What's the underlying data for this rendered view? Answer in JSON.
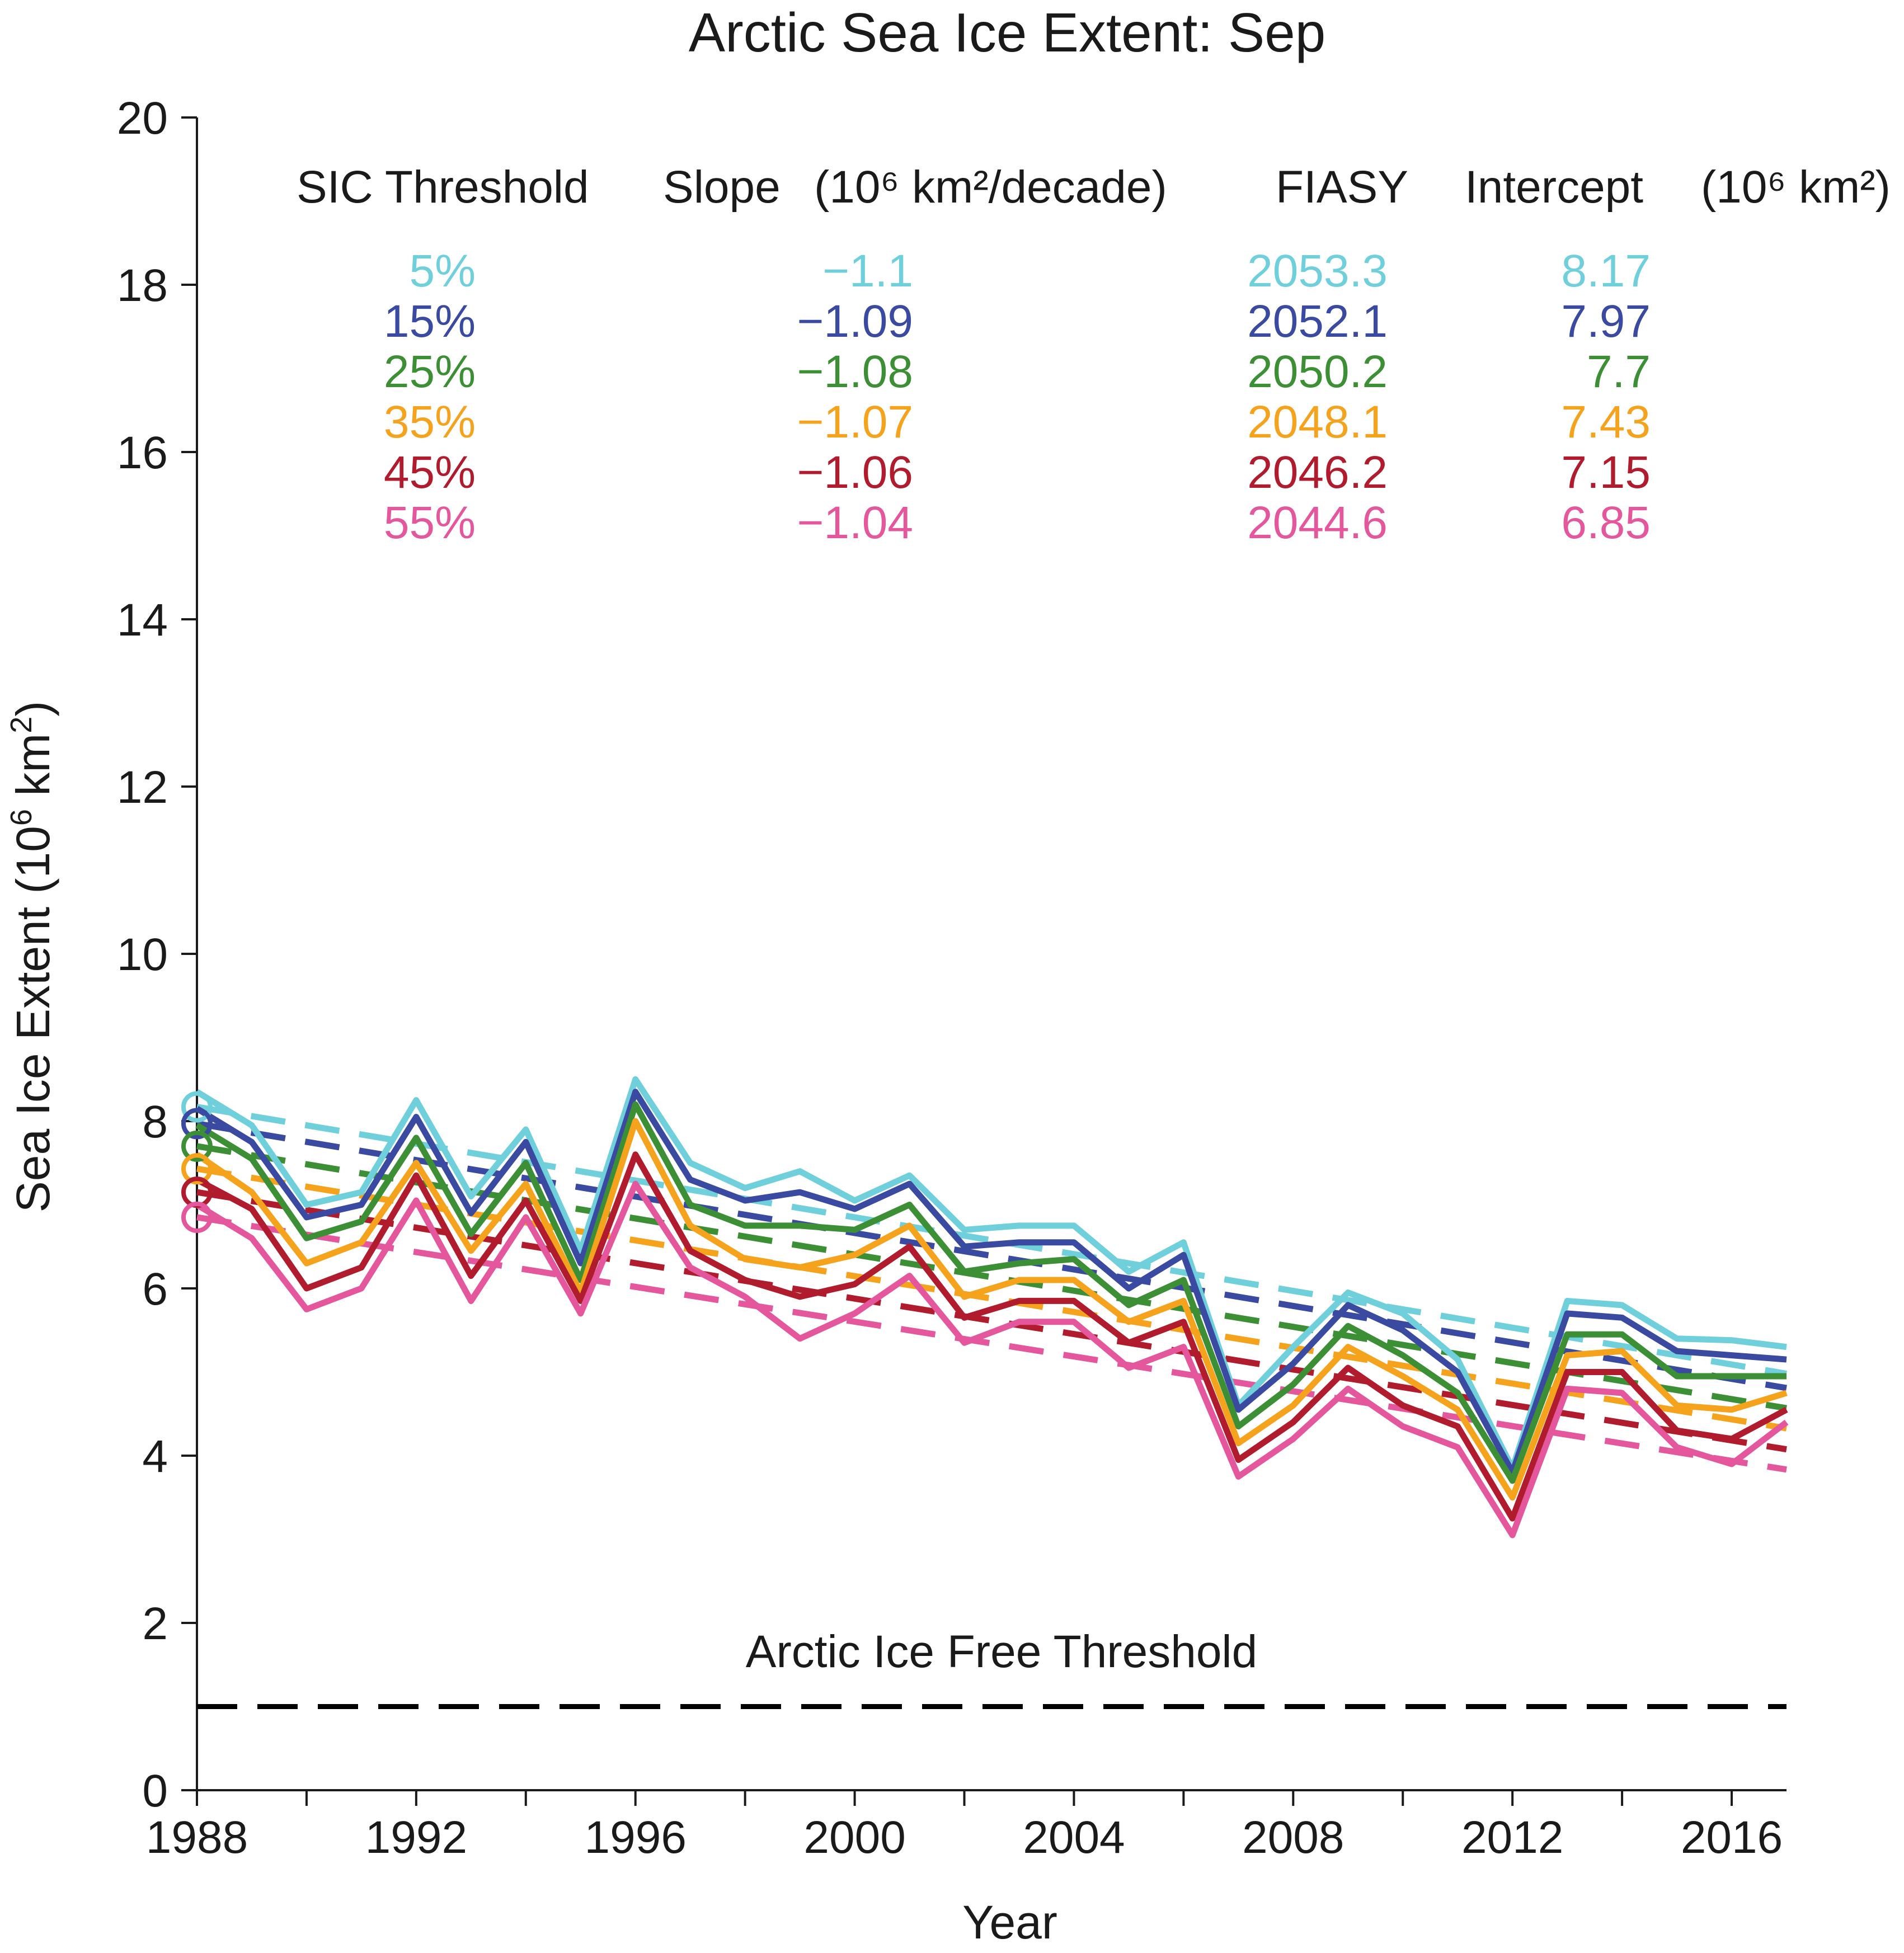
{
  "chart_data": {
    "type": "line",
    "title": "Arctic Sea Ice Extent: Sep",
    "xlabel": "Year",
    "ylabel": "Sea Ice Extent (10^6 km^2)",
    "xlim": [
      1988,
      2017
    ],
    "ylim": [
      0,
      20
    ],
    "x_ticks": [
      1988,
      1990,
      1992,
      1994,
      1996,
      1998,
      2000,
      2002,
      2004,
      2006,
      2008,
      2010,
      2012,
      2014,
      2016
    ],
    "x_tick_labels": [
      "1988",
      "1992",
      "1996",
      "2000",
      "2004",
      "2008",
      "2012",
      "2016"
    ],
    "y_ticks": [
      0,
      2,
      4,
      6,
      8,
      10,
      12,
      14,
      16,
      18,
      20
    ],
    "x": [
      1988,
      1989,
      1990,
      1991,
      1992,
      1993,
      1994,
      1995,
      1996,
      1997,
      1998,
      1999,
      2000,
      2001,
      2002,
      2003,
      2004,
      2005,
      2006,
      2007,
      2008,
      2009,
      2010,
      2011,
      2012,
      2013,
      2014,
      2015,
      2016,
      2017
    ],
    "table_headers": {
      "threshold": "SIC Threshold",
      "slope": "Slope",
      "slope_unit": "(10⁶ km²/decade)",
      "fiasy": "FIASY",
      "intercept": "Intercept",
      "intercept_unit": "(10⁶ km²)"
    },
    "series": [
      {
        "name": "5%",
        "color": "#6fd0dc",
        "slope": "−1.1",
        "fiasy": "2053.3",
        "intercept": "8.17",
        "values": [
          8.35,
          7.95,
          7.0,
          7.15,
          8.25,
          7.1,
          7.9,
          6.45,
          8.5,
          7.5,
          7.2,
          7.4,
          7.05,
          7.35,
          6.7,
          6.75,
          6.75,
          6.2,
          6.55,
          4.6,
          5.3,
          5.95,
          5.7,
          5.15,
          3.85,
          5.85,
          5.8,
          5.4,
          5.38,
          5.3
        ]
      },
      {
        "name": "15%",
        "color": "#3a4aa0",
        "slope": "−1.09",
        "fiasy": "2052.1",
        "intercept": "7.97",
        "values": [
          8.15,
          7.75,
          6.85,
          7.0,
          8.05,
          6.9,
          7.75,
          6.3,
          8.35,
          7.3,
          7.05,
          7.15,
          6.95,
          7.25,
          6.5,
          6.55,
          6.55,
          6.0,
          6.4,
          4.55,
          5.1,
          5.8,
          5.5,
          5.0,
          3.8,
          5.7,
          5.65,
          5.25,
          5.2,
          5.15
        ]
      },
      {
        "name": "25%",
        "color": "#3d8f35",
        "slope": "−1.08",
        "fiasy": "2050.2",
        "intercept": "7.7",
        "values": [
          7.95,
          7.55,
          6.6,
          6.8,
          7.8,
          6.65,
          7.5,
          6.1,
          8.2,
          7.0,
          6.75,
          6.75,
          6.7,
          7.0,
          6.2,
          6.3,
          6.35,
          5.8,
          6.1,
          4.35,
          4.85,
          5.55,
          5.2,
          4.75,
          3.7,
          5.45,
          5.45,
          4.95,
          4.95,
          4.95
        ]
      },
      {
        "name": "35%",
        "color": "#f5a21c",
        "slope": "−1.07",
        "fiasy": "2048.1",
        "intercept": "7.43",
        "values": [
          7.6,
          7.15,
          6.3,
          6.55,
          7.5,
          6.45,
          7.25,
          5.95,
          8.0,
          6.75,
          6.35,
          6.25,
          6.4,
          6.75,
          5.9,
          6.1,
          6.1,
          5.6,
          5.85,
          4.15,
          4.6,
          5.3,
          4.95,
          4.55,
          3.5,
          5.2,
          5.25,
          4.6,
          4.55,
          4.75
        ]
      },
      {
        "name": "45%",
        "color": "#b01c2e",
        "slope": "−1.06",
        "fiasy": "2046.2",
        "intercept": "7.15",
        "values": [
          7.3,
          6.95,
          6.0,
          6.25,
          7.35,
          6.15,
          7.05,
          5.85,
          7.6,
          6.45,
          6.1,
          5.9,
          6.05,
          6.5,
          5.65,
          5.85,
          5.85,
          5.35,
          5.6,
          3.95,
          4.4,
          5.05,
          4.6,
          4.35,
          3.25,
          5.0,
          5.0,
          4.3,
          4.2,
          4.55
        ]
      },
      {
        "name": "55%",
        "color": "#e4579d",
        "slope": "−1.04",
        "fiasy": "2044.6",
        "intercept": "6.85",
        "values": [
          7.0,
          6.6,
          5.75,
          6.0,
          7.05,
          5.85,
          6.85,
          5.7,
          7.25,
          6.25,
          5.9,
          5.4,
          5.7,
          6.15,
          5.35,
          5.6,
          5.6,
          5.05,
          5.3,
          3.75,
          4.2,
          4.8,
          4.35,
          4.1,
          3.05,
          4.8,
          4.75,
          4.1,
          3.9,
          4.4
        ]
      }
    ],
    "threshold_line": {
      "value": 1,
      "label": "Arctic Ice Free Threshold",
      "color": "#000000"
    },
    "legend_placement": "top",
    "grid": false
  }
}
